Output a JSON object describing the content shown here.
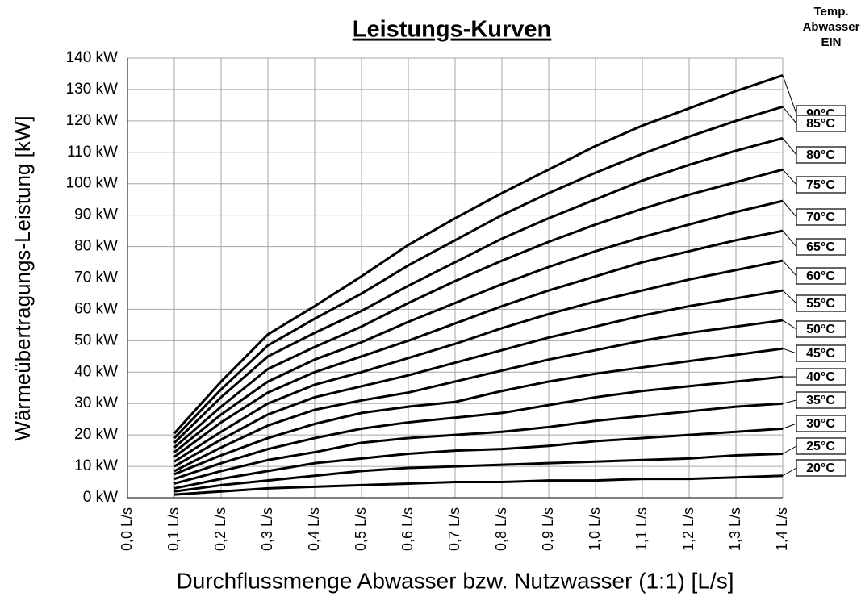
{
  "chart_data": {
    "type": "line",
    "title": "Leistungs-Kurven",
    "x_label": "Durchflussmenge Abwasser bzw. Nutzwasser (1:1) [L/s]",
    "y_label": "Wärmeübertragungs-Leistung [kW]",
    "legend_title": [
      "Temp.",
      "Abwasser",
      "EIN"
    ],
    "x": [
      0.1,
      0.2,
      0.3,
      0.4,
      0.5,
      0.6,
      0.7,
      0.8,
      0.9,
      1.0,
      1.1,
      1.2,
      1.3,
      1.4
    ],
    "xlim": [
      0,
      1.4
    ],
    "ylim": [
      0,
      140
    ],
    "grid": true,
    "xticks": [
      {
        "value": 0,
        "label": "0,0 L/s"
      },
      {
        "value": 0.1,
        "label": "0,1 L/s"
      },
      {
        "value": 0.2,
        "label": "0,2 L/s"
      },
      {
        "value": 0.3,
        "label": "0,3 L/s"
      },
      {
        "value": 0.4,
        "label": "0,4 L/s"
      },
      {
        "value": 0.5,
        "label": "0,5 L/s"
      },
      {
        "value": 0.6,
        "label": "0,6 L/s"
      },
      {
        "value": 0.7,
        "label": "0,7 L/s"
      },
      {
        "value": 0.8,
        "label": "0,8 L/s"
      },
      {
        "value": 0.9,
        "label": "0,9 L/s"
      },
      {
        "value": 1.0,
        "label": "1,0 L/s"
      },
      {
        "value": 1.1,
        "label": "1,1 L/s"
      },
      {
        "value": 1.2,
        "label": "1,2 L/s"
      },
      {
        "value": 1.3,
        "label": "1,3 L/s"
      },
      {
        "value": 1.4,
        "label": "1,4 L/s"
      }
    ],
    "yticks": [
      {
        "value": 0,
        "label": "0 kW"
      },
      {
        "value": 10,
        "label": "10 kW"
      },
      {
        "value": 20,
        "label": "20 kW"
      },
      {
        "value": 30,
        "label": "30 kW"
      },
      {
        "value": 40,
        "label": "40 kW"
      },
      {
        "value": 50,
        "label": "50 kW"
      },
      {
        "value": 60,
        "label": "60 kW"
      },
      {
        "value": 70,
        "label": "70 kW"
      },
      {
        "value": 80,
        "label": "80 kW"
      },
      {
        "value": 90,
        "label": "90 kW"
      },
      {
        "value": 100,
        "label": "100 kW"
      },
      {
        "value": 110,
        "label": "110 kW"
      },
      {
        "value": 120,
        "label": "120 kW"
      },
      {
        "value": 130,
        "label": "130 kW"
      },
      {
        "value": 140,
        "label": "140 kW"
      }
    ],
    "series": [
      {
        "name": "90°C",
        "color": "#000000",
        "values": [
          20.5,
          37,
          52,
          61,
          70.5,
          80.5,
          89,
          97,
          104.5,
          112,
          118.5,
          124,
          129.5,
          134.5
        ]
      },
      {
        "name": "85°C",
        "color": "#000000",
        "values": [
          19,
          34.5,
          48.5,
          57,
          65,
          74,
          82,
          90,
          97,
          103.5,
          109.5,
          115,
          120,
          124.5
        ]
      },
      {
        "name": "80°C",
        "color": "#000000",
        "values": [
          17.5,
          32,
          45,
          52.5,
          59.5,
          67.5,
          75,
          82.5,
          89,
          95,
          101,
          106,
          110.5,
          114.5
        ]
      },
      {
        "name": "75°C",
        "color": "#000000",
        "values": [
          16,
          29,
          41,
          48,
          54.5,
          62,
          69,
          75.5,
          81.5,
          87,
          92,
          96.5,
          100.5,
          104.5
        ]
      },
      {
        "name": "70°C",
        "color": "#000000",
        "values": [
          14.5,
          26.5,
          37,
          44,
          49.5,
          56,
          62,
          68,
          73.5,
          78.5,
          83,
          87,
          91,
          94.5
        ]
      },
      {
        "name": "65°C",
        "color": "#000000",
        "values": [
          13,
          24,
          33.5,
          40,
          45,
          50,
          55.5,
          61,
          66,
          70.5,
          75,
          78.5,
          82,
          85
        ]
      },
      {
        "name": "60°C",
        "color": "#000000",
        "values": [
          11.5,
          21,
          30,
          36,
          40,
          44.5,
          49,
          54,
          58.5,
          62.5,
          66,
          69.5,
          72.5,
          75.5
        ]
      },
      {
        "name": "55°C",
        "color": "#000000",
        "values": [
          10,
          18.5,
          26.5,
          32,
          35.5,
          39,
          43,
          47,
          51,
          54.5,
          58,
          61,
          63.5,
          66
        ]
      },
      {
        "name": "50°C",
        "color": "#000000",
        "values": [
          8.5,
          16,
          23,
          28,
          31,
          33.5,
          37,
          40.5,
          44,
          47,
          50,
          52.5,
          54.5,
          56.5
        ]
      },
      {
        "name": "45°C",
        "color": "#000000",
        "values": [
          7.5,
          13.5,
          19,
          23.5,
          27,
          29,
          30.5,
          34,
          37,
          39.5,
          41.5,
          43.5,
          45.5,
          47.5
        ]
      },
      {
        "name": "40°C",
        "color": "#000000",
        "values": [
          6,
          11,
          15.5,
          19,
          22,
          24,
          25.5,
          27,
          29.5,
          32,
          34,
          35.5,
          37,
          38.5
        ]
      },
      {
        "name": "35°C",
        "color": "#000000",
        "values": [
          4.5,
          8.5,
          12,
          14.5,
          17.5,
          19,
          20,
          21,
          22.5,
          24.5,
          26,
          27.5,
          29,
          30
        ]
      },
      {
        "name": "30°C",
        "color": "#000000",
        "values": [
          3,
          6,
          8.5,
          11,
          12.5,
          14,
          15,
          15.5,
          16.5,
          18,
          19,
          20,
          21,
          22
        ]
      },
      {
        "name": "25°C",
        "color": "#000000",
        "values": [
          2,
          4,
          5.5,
          7,
          8.5,
          9.5,
          10,
          10.5,
          11,
          11.5,
          12,
          12.5,
          13.5,
          14
        ]
      },
      {
        "name": "20°C",
        "color": "#000000",
        "values": [
          1,
          2,
          3,
          3.5,
          4,
          4.5,
          5,
          5,
          5.5,
          5.5,
          6,
          6,
          6.5,
          7
        ]
      }
    ]
  }
}
